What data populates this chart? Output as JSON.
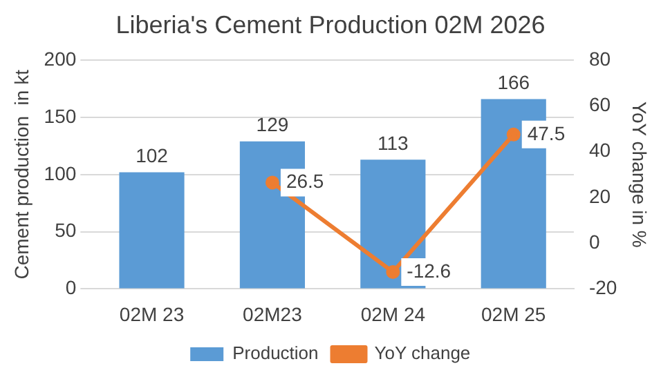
{
  "chart_data": {
    "type": "bar",
    "title": "Liberia's Cement Production 02M 2026",
    "ylabel": "Cement production  in kt",
    "y2label": "YoY change in %",
    "categories": [
      "02M 23",
      "02M23",
      "02M 24",
      "02M 25"
    ],
    "series": [
      {
        "name": "Production",
        "color": "#5b9bd5",
        "values": [
          102,
          129,
          113,
          166
        ]
      },
      {
        "name": "YoY change",
        "type": "line",
        "axis": "y2",
        "color": "#ed7d31",
        "marker": "circle",
        "values": [
          null,
          26.5,
          -12.6,
          47.5
        ]
      }
    ],
    "ylim": [
      0,
      200
    ],
    "yticks": [
      0,
      50,
      100,
      150,
      200
    ],
    "y2lim": [
      -20,
      80
    ],
    "y2ticks": [
      -20,
      0,
      20,
      40,
      60,
      80
    ],
    "grid": "y",
    "legend": "bottom",
    "data_labels": true
  }
}
